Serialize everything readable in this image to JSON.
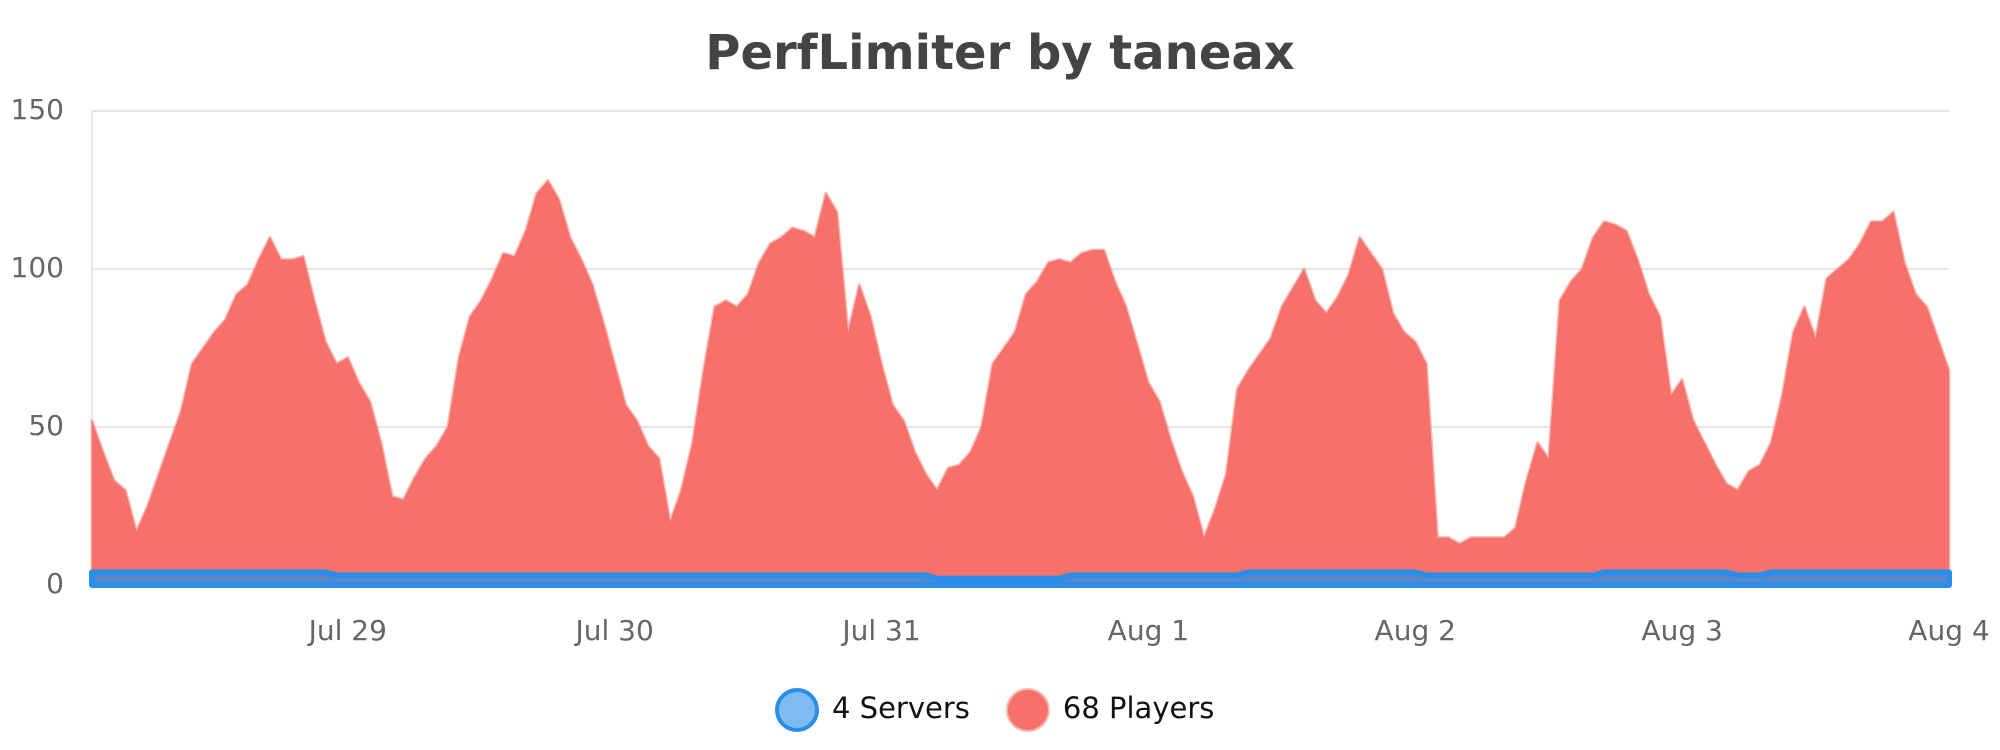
{
  "chart_data": {
    "type": "area",
    "title": "PerfLimiter by taneax",
    "categories": [
      null,
      null,
      null,
      null,
      null,
      null,
      null,
      null,
      null,
      null,
      null,
      null,
      null,
      null,
      null,
      null,
      null,
      null,
      null,
      null,
      null,
      null,
      null,
      "Jul 29",
      null,
      null,
      null,
      null,
      null,
      null,
      null,
      null,
      null,
      null,
      null,
      null,
      null,
      null,
      null,
      null,
      null,
      null,
      null,
      null,
      null,
      null,
      null,
      "Jul 30",
      null,
      null,
      null,
      null,
      null,
      null,
      null,
      null,
      null,
      null,
      null,
      null,
      null,
      null,
      null,
      null,
      null,
      null,
      null,
      null,
      null,
      null,
      null,
      "Jul 31",
      null,
      null,
      null,
      null,
      null,
      null,
      null,
      null,
      null,
      null,
      null,
      null,
      null,
      null,
      null,
      null,
      null,
      null,
      null,
      null,
      null,
      null,
      null,
      "Aug 1",
      null,
      null,
      null,
      null,
      null,
      null,
      null,
      null,
      null,
      null,
      null,
      null,
      null,
      null,
      null,
      null,
      null,
      null,
      null,
      null,
      null,
      null,
      null,
      "Aug 2",
      null,
      null,
      null,
      null,
      null,
      null,
      null,
      null,
      null,
      null,
      null,
      null,
      null,
      null,
      null,
      null,
      null,
      null,
      null,
      null,
      null,
      null,
      null,
      "Aug 3",
      null,
      null,
      null,
      null,
      null,
      null,
      null,
      null,
      null,
      null,
      null,
      null,
      null,
      null,
      null,
      null,
      null,
      null,
      null,
      null,
      null,
      null,
      null,
      "Aug 4"
    ],
    "series": [
      {
        "name": "4 Servers",
        "color": "#2a8ee8",
        "values": [
          4,
          4,
          4,
          4,
          4,
          4,
          4,
          4,
          4,
          4,
          4,
          4,
          4,
          4,
          4,
          4,
          4,
          4,
          4,
          4,
          4,
          4,
          3,
          3,
          3,
          3,
          3,
          3,
          3,
          3,
          3,
          3,
          3,
          3,
          3,
          3,
          3,
          3,
          3,
          3,
          3,
          3,
          3,
          3,
          3,
          3,
          3,
          3,
          3,
          3,
          3,
          3,
          3,
          3,
          3,
          3,
          3,
          3,
          3,
          3,
          3,
          3,
          3,
          3,
          3,
          3,
          3,
          3,
          3,
          3,
          3,
          3,
          3,
          3,
          3,
          3,
          2,
          2,
          2,
          2,
          2,
          2,
          2,
          2,
          2,
          2,
          2,
          2,
          3,
          3,
          3,
          3,
          3,
          3,
          3,
          3,
          3,
          3,
          3,
          3,
          3,
          3,
          3,
          3,
          4,
          4,
          4,
          4,
          4,
          4,
          4,
          4,
          4,
          4,
          4,
          4,
          4,
          4,
          4,
          4,
          3,
          3,
          3,
          3,
          3,
          3,
          3,
          3,
          3,
          3,
          3,
          3,
          3,
          3,
          3,
          3,
          4,
          4,
          4,
          4,
          4,
          4,
          4,
          4,
          4,
          4,
          4,
          4,
          3,
          3,
          3,
          4,
          4,
          4,
          4,
          4,
          4,
          4,
          4,
          4,
          4,
          4,
          4,
          4,
          4,
          4,
          4,
          4
        ]
      },
      {
        "name": "68 Players",
        "color": "#f6716a",
        "values": [
          52,
          42,
          33,
          30,
          17,
          25,
          35,
          45,
          55,
          70,
          75,
          80,
          84,
          92,
          95,
          103,
          110,
          103,
          103,
          104,
          90,
          77,
          70,
          72,
          64,
          58,
          45,
          28,
          27,
          34,
          40,
          44,
          50,
          72,
          85,
          90,
          97,
          105,
          104,
          112,
          124,
          128,
          122,
          110,
          103,
          95,
          83,
          70,
          57,
          52,
          44,
          40,
          20,
          30,
          45,
          68,
          88,
          90,
          88,
          92,
          102,
          108,
          110,
          113,
          112,
          110,
          124,
          118,
          80,
          95,
          85,
          70,
          57,
          52,
          42,
          35,
          30,
          37,
          38,
          42,
          50,
          70,
          75,
          80,
          92,
          96,
          102,
          103,
          102,
          105,
          106,
          106,
          96,
          88,
          76,
          64,
          58,
          46,
          36,
          28,
          15,
          24,
          35,
          62,
          68,
          73,
          78,
          88,
          94,
          100,
          90,
          86,
          91,
          98,
          110,
          105,
          100,
          86,
          80,
          77,
          70,
          15,
          15,
          13,
          15,
          15,
          15,
          15,
          18,
          33,
          45,
          40,
          90,
          96,
          100,
          110,
          115,
          114,
          112,
          103,
          92,
          85,
          60,
          65,
          52,
          45,
          38,
          32,
          30,
          36,
          38,
          45,
          60,
          80,
          88,
          78,
          97,
          100,
          103,
          108,
          115,
          115,
          118,
          102,
          92,
          88,
          78,
          68
        ]
      }
    ],
    "ylim": [
      0,
      150
    ],
    "yticks": [
      0,
      50,
      100,
      150
    ],
    "grid": true,
    "legend": "bottom"
  }
}
